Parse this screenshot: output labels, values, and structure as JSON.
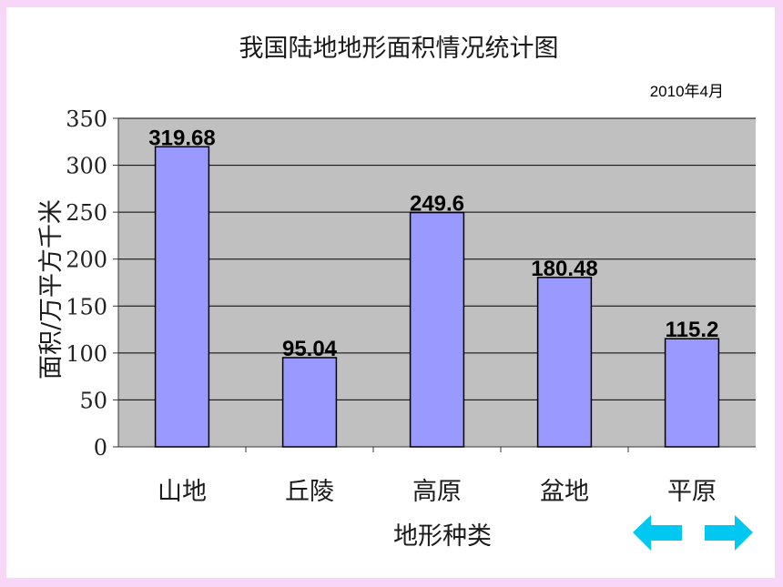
{
  "chart_data": {
    "type": "bar",
    "title": "我国陆地地形面积情况统计图",
    "subtitle": "2010年4月",
    "xlabel": "地形种类",
    "ylabel": "面积/万平方千米",
    "categories": [
      "山地",
      "丘陵",
      "高原",
      "盆地",
      "平原"
    ],
    "values": [
      319.68,
      95.04,
      249.6,
      180.48,
      115.2
    ],
    "value_labels": [
      "319.68",
      "95.04",
      "249.6",
      "180.48",
      "115.2"
    ],
    "ylim": [
      0,
      350
    ],
    "yticks": [
      0,
      50,
      100,
      150,
      200,
      250,
      300,
      350
    ],
    "grid": true,
    "legend": "none",
    "colors": {
      "bar_fill": "#9999ff",
      "plot_background": "#c0c0c0",
      "gridline": "#000000",
      "page_border": "#f7d6f7",
      "arrow": "#00c8f0"
    }
  },
  "nav": {
    "prev_icon": "left-arrow-icon",
    "next_icon": "right-arrow-icon"
  }
}
